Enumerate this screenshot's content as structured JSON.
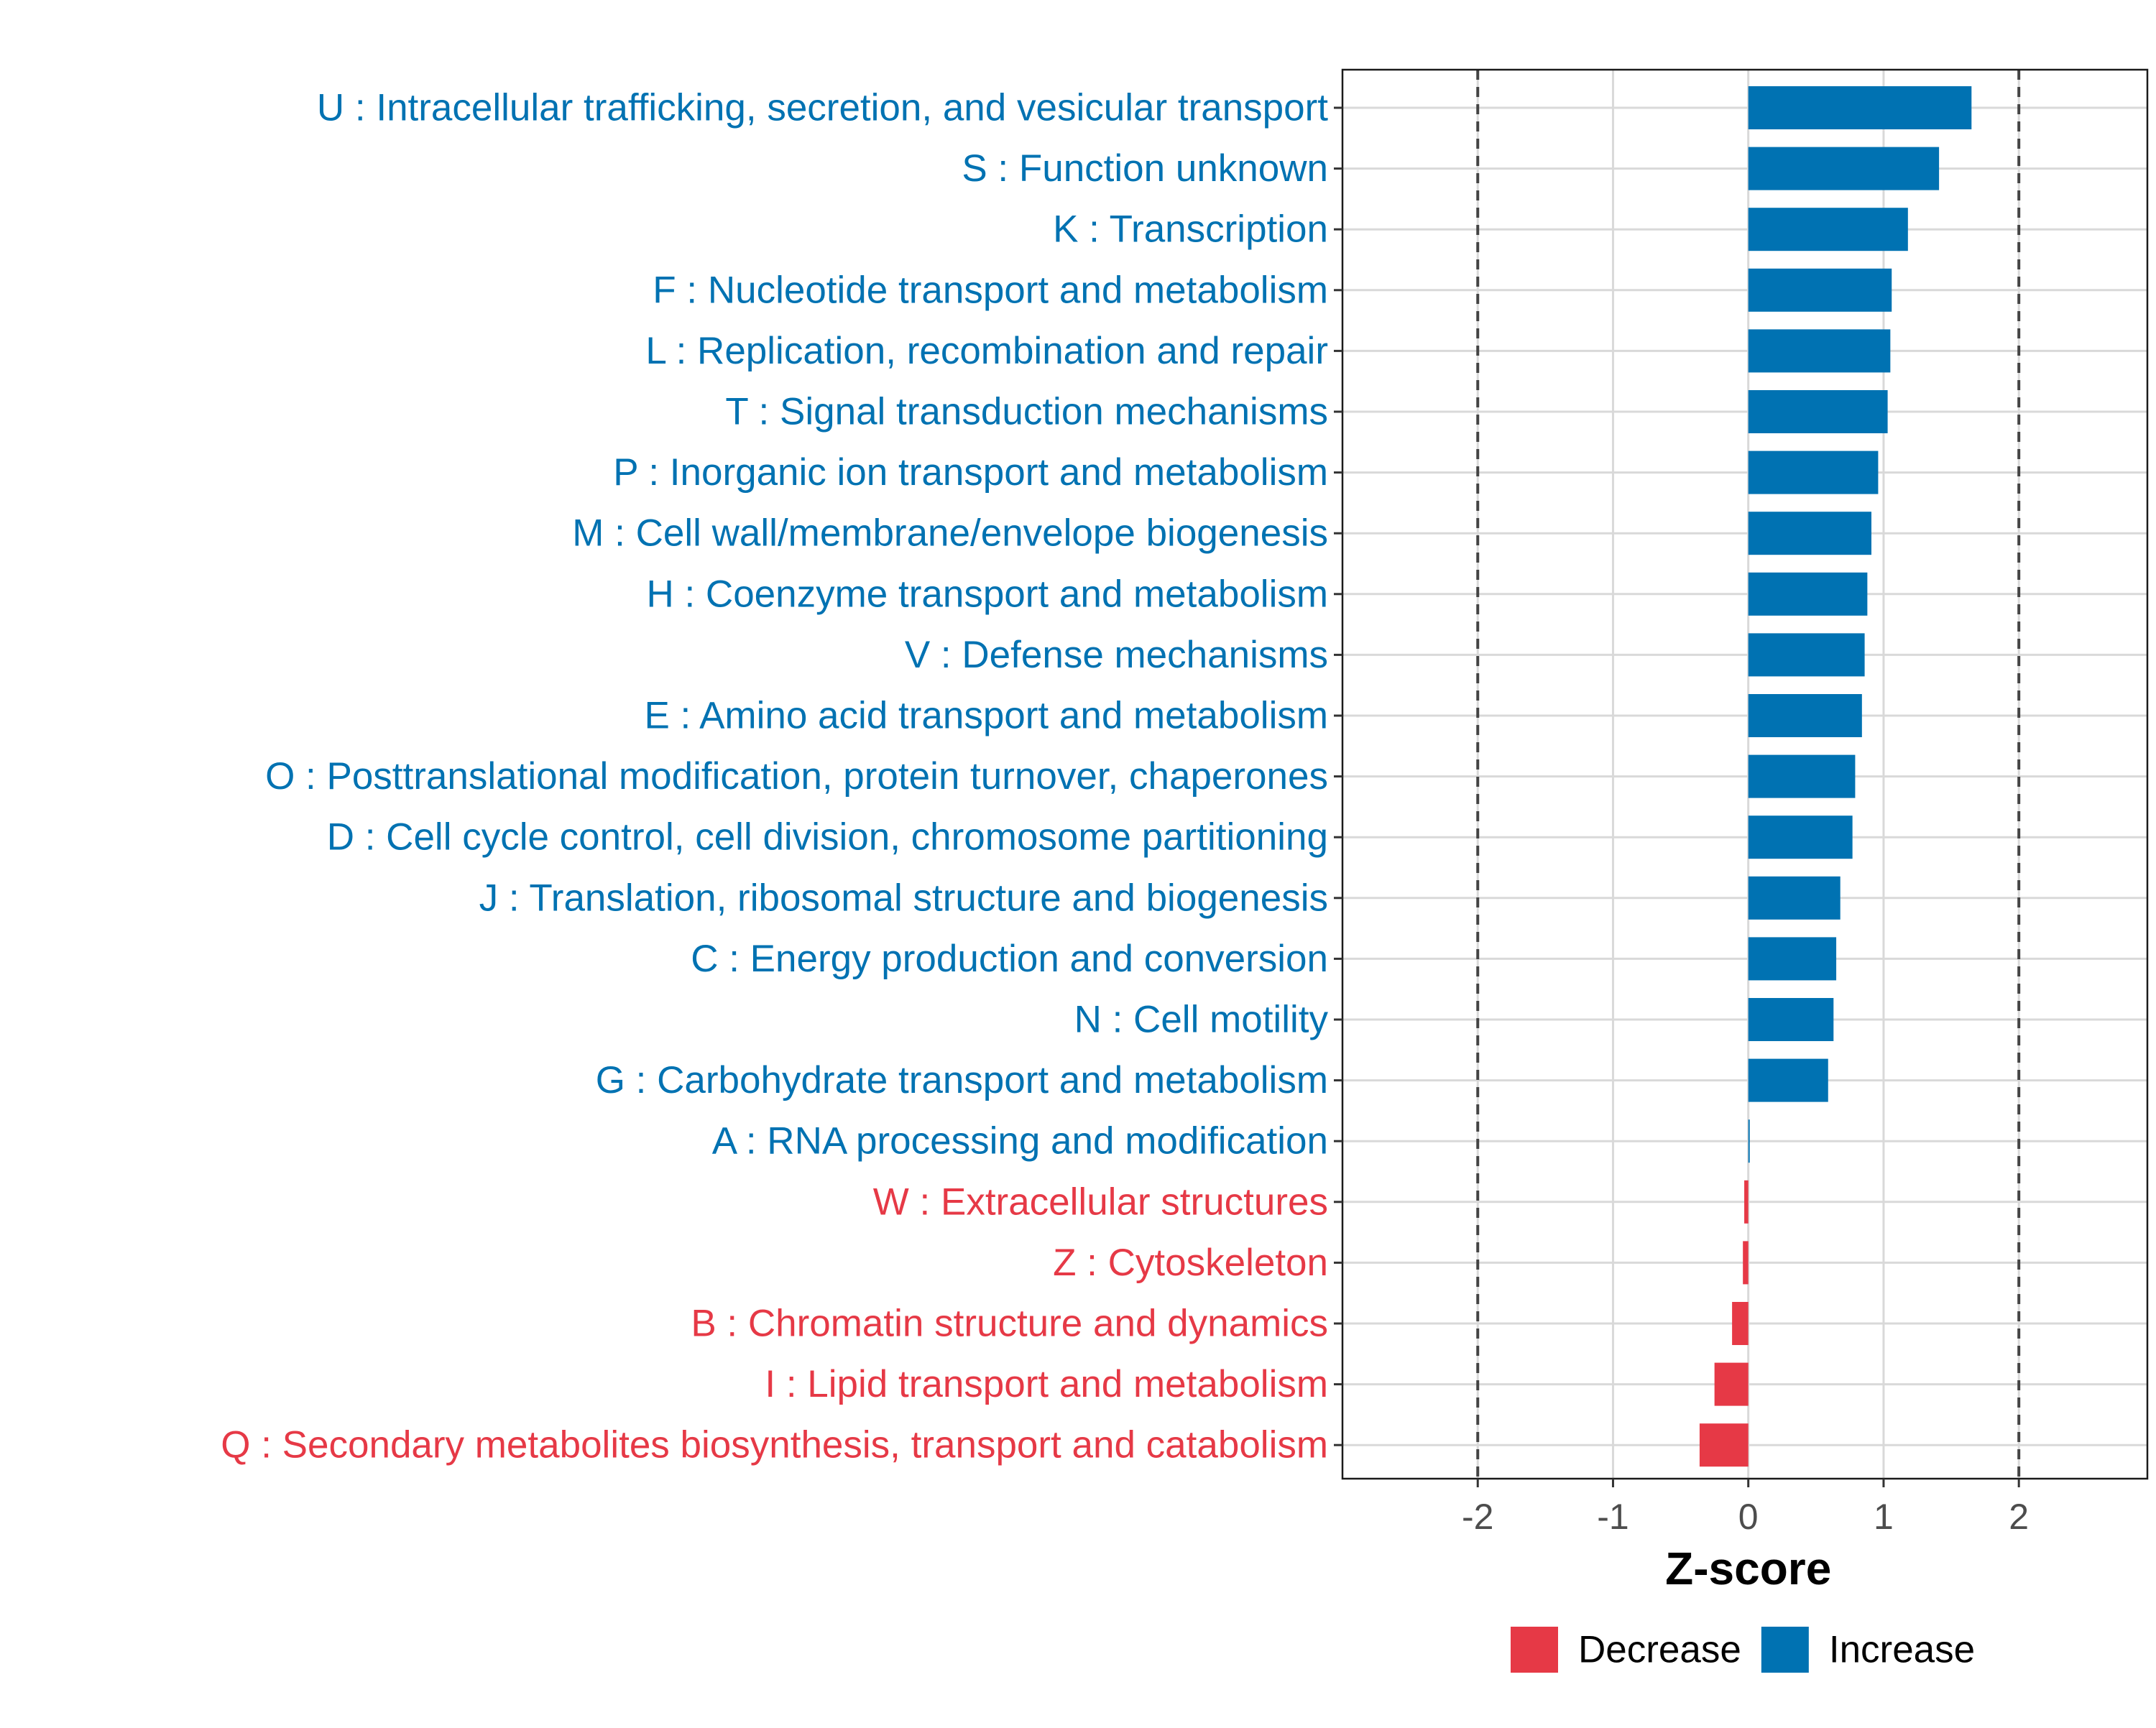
{
  "chart_data": {
    "type": "bar",
    "orientation": "horizontal",
    "title": "",
    "xlabel": "Z-score",
    "ylabel": "",
    "xlim": [
      -3.0,
      2.95
    ],
    "xticks": [
      -2,
      -1,
      0,
      1,
      2
    ],
    "xtick_labels": [
      "-2",
      "-1",
      "0",
      "1",
      "2"
    ],
    "reference_lines": [
      -2,
      2
    ],
    "grid": true,
    "legend_position": "bottom",
    "colors": {
      "Increase": "#0072b2",
      "Decrease": "#e63946"
    },
    "legend": [
      {
        "label": "Decrease",
        "color": "#e63946"
      },
      {
        "label": "Increase",
        "color": "#0072b2"
      }
    ],
    "categories": [
      "U : Intracellular trafficking, secretion, and vesicular transport",
      "S : Function unknown",
      "K : Transcription",
      "F : Nucleotide transport and metabolism",
      "L : Replication, recombination and repair",
      "T : Signal transduction mechanisms",
      "P : Inorganic ion transport and metabolism",
      "M : Cell wall/membrane/envelope biogenesis",
      "H : Coenzyme transport and metabolism",
      "V : Defense mechanisms",
      "E : Amino acid transport and metabolism",
      "O : Posttranslational modification, protein turnover, chaperones",
      "D : Cell cycle control, cell division, chromosome partitioning",
      "J : Translation, ribosomal structure and biogenesis",
      "C : Energy production and conversion",
      "N : Cell motility",
      "G : Carbohydrate transport and metabolism",
      "A : RNA processing and modification",
      "W : Extracellular structures",
      "Z : Cytoskeleton",
      "B : Chromatin structure and dynamics",
      "I : Lipid transport and metabolism",
      "Q : Secondary metabolites biosynthesis, transport and catabolism"
    ],
    "values": [
      1.65,
      1.41,
      1.18,
      1.06,
      1.05,
      1.03,
      0.96,
      0.91,
      0.88,
      0.86,
      0.84,
      0.79,
      0.77,
      0.68,
      0.65,
      0.63,
      0.59,
      0.01,
      -0.03,
      -0.04,
      -0.12,
      -0.25,
      -0.36
    ],
    "groups": [
      "Increase",
      "Increase",
      "Increase",
      "Increase",
      "Increase",
      "Increase",
      "Increase",
      "Increase",
      "Increase",
      "Increase",
      "Increase",
      "Increase",
      "Increase",
      "Increase",
      "Increase",
      "Increase",
      "Increase",
      "Increase",
      "Decrease",
      "Decrease",
      "Decrease",
      "Decrease",
      "Decrease"
    ]
  }
}
